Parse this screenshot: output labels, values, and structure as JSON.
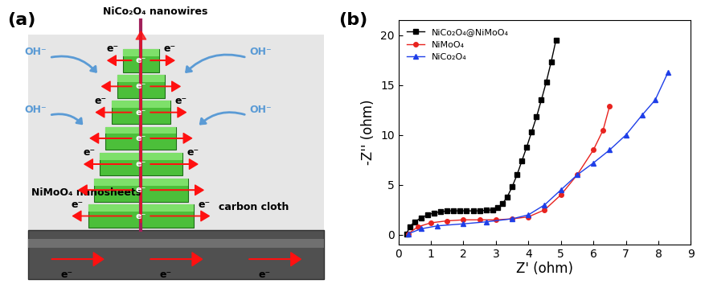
{
  "diagram": {
    "panel_label": "(a)",
    "labels": {
      "nanowires": "NiCo₂O₄ nanowires",
      "nanosheets": "NiMoO₄ nanosheets",
      "substrate": "carbon cloth"
    },
    "electron": "e⁻",
    "hydroxide": "OH⁻"
  },
  "chart_data": {
    "type": "line",
    "panel_label": "(b)",
    "x_label": "Z' (ohm)",
    "y_label": "-Z'' (ohm)",
    "xlim": [
      0,
      9
    ],
    "xticks": [
      0,
      1,
      2,
      3,
      4,
      5,
      6,
      7,
      8,
      9
    ],
    "ylim": [
      -1,
      21.5
    ],
    "yticks": [
      0,
      5,
      10,
      15,
      20
    ],
    "legend": "upper left",
    "series": [
      {
        "name": "NiCo₂O₄@NiMoO₄",
        "color": "#000000",
        "marker": "square",
        "x": [
          0.25,
          0.35,
          0.5,
          0.7,
          0.9,
          1.1,
          1.3,
          1.5,
          1.7,
          1.9,
          2.1,
          2.3,
          2.5,
          2.7,
          2.9,
          3.05,
          3.2,
          3.35,
          3.5,
          3.65,
          3.8,
          3.95,
          4.1,
          4.25,
          4.4,
          4.55,
          4.7,
          4.85
        ],
        "values": [
          0.1,
          0.8,
          1.3,
          1.7,
          2.0,
          2.2,
          2.3,
          2.4,
          2.4,
          2.4,
          2.4,
          2.4,
          2.4,
          2.45,
          2.5,
          2.7,
          3.1,
          3.8,
          4.8,
          6.0,
          7.4,
          8.8,
          10.3,
          11.8,
          13.5,
          15.3,
          17.3,
          19.5
        ]
      },
      {
        "name": "NiMoO₄",
        "color": "#e8231f",
        "marker": "circle",
        "x": [
          0.3,
          0.6,
          1.0,
          1.5,
          2.0,
          2.5,
          3.0,
          3.5,
          4.0,
          4.5,
          5.0,
          5.5,
          6.0,
          6.3,
          6.5
        ],
        "values": [
          0.1,
          0.8,
          1.2,
          1.4,
          1.5,
          1.5,
          1.5,
          1.6,
          1.8,
          2.5,
          4.0,
          6.0,
          8.5,
          10.5,
          12.9
        ]
      },
      {
        "name": "NiCo₂O₄",
        "color": "#1f3fe8",
        "marker": "triangle",
        "x": [
          0.3,
          0.7,
          1.2,
          2.0,
          2.7,
          3.5,
          4.0,
          4.5,
          5.0,
          5.5,
          6.0,
          6.5,
          7.0,
          7.5,
          7.9,
          8.3
        ],
        "values": [
          0.1,
          0.6,
          0.9,
          1.1,
          1.3,
          1.6,
          2.0,
          3.0,
          4.5,
          6.0,
          7.2,
          8.5,
          10.0,
          12.0,
          13.5,
          16.3
        ]
      }
    ]
  }
}
